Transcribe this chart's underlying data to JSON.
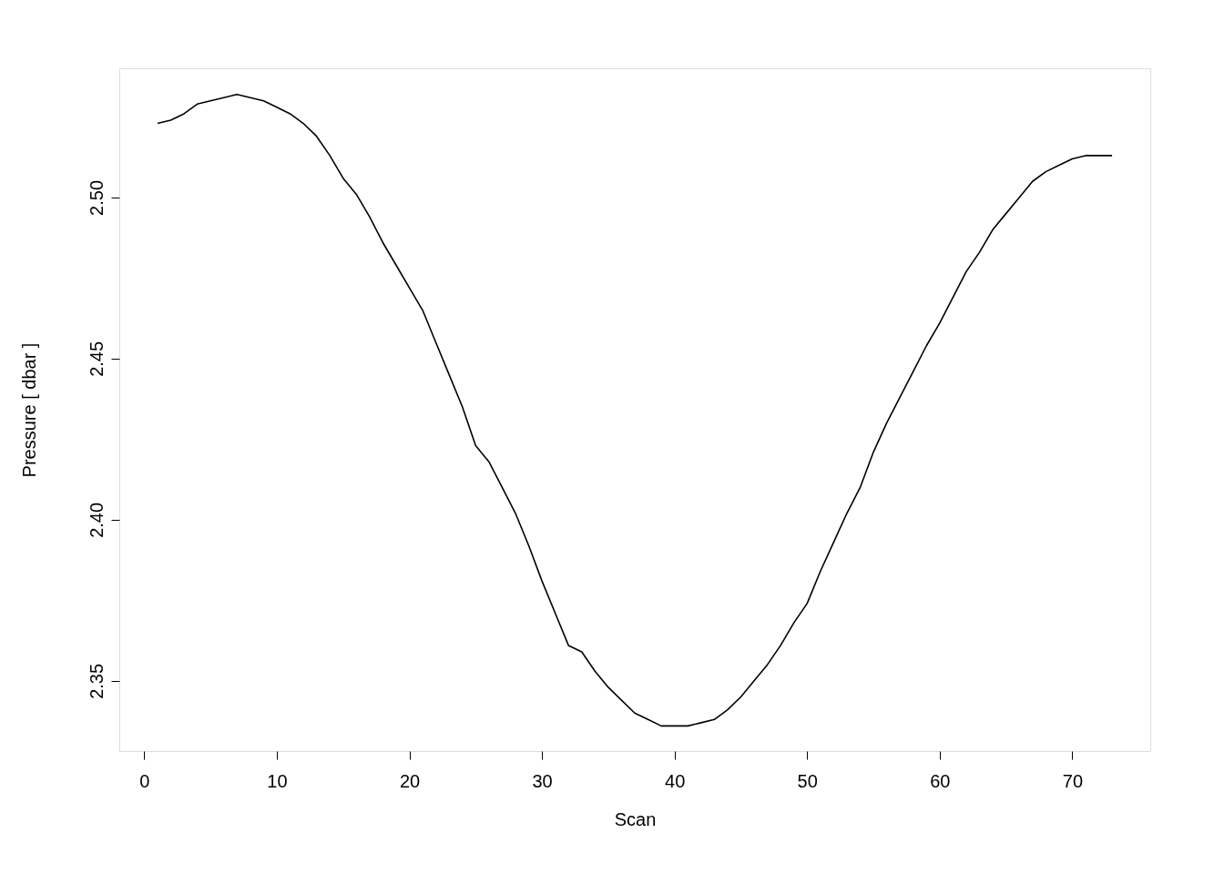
{
  "chart_data": {
    "type": "line",
    "xlabel": "Scan",
    "ylabel": "Pressure [ dbar ]",
    "x": [
      1,
      2,
      3,
      4,
      5,
      6,
      7,
      8,
      9,
      10,
      11,
      12,
      13,
      14,
      15,
      16,
      17,
      18,
      19,
      20,
      21,
      22,
      23,
      24,
      25,
      26,
      27,
      28,
      29,
      30,
      31,
      32,
      33,
      34,
      35,
      36,
      37,
      38,
      39,
      40,
      41,
      42,
      43,
      44,
      45,
      46,
      47,
      48,
      49,
      50,
      51,
      52,
      53,
      54,
      55,
      56,
      57,
      58,
      59,
      60,
      61,
      62,
      63,
      64,
      65,
      66,
      67,
      68,
      69,
      70,
      71,
      72,
      73
    ],
    "series": [
      {
        "color": "#000000",
        "values": [
          2.523,
          2.524,
          2.526,
          2.529,
          2.53,
          2.531,
          2.532,
          2.531,
          2.53,
          2.528,
          2.526,
          2.523,
          2.519,
          2.513,
          2.506,
          2.501,
          2.494,
          2.486,
          2.479,
          2.472,
          2.465,
          2.455,
          2.445,
          2.435,
          2.423,
          2.418,
          2.41,
          2.402,
          2.392,
          2.381,
          2.371,
          2.361,
          2.359,
          2.353,
          2.348,
          2.344,
          2.34,
          2.338,
          2.336,
          2.336,
          2.336,
          2.337,
          2.338,
          2.341,
          2.345,
          2.35,
          2.355,
          2.361,
          2.368,
          2.374,
          2.384,
          2.393,
          2.402,
          2.41,
          2.421,
          2.43,
          2.438,
          2.446,
          2.454,
          2.461,
          2.469,
          2.477,
          2.483,
          2.49,
          2.495,
          2.5,
          2.505,
          2.508,
          2.51,
          2.512,
          2.513,
          2.513,
          2.513
        ]
      }
    ],
    "xlim": [
      -1.88,
      75.88
    ],
    "ylim": [
      2.3282,
      2.5401
    ],
    "xticks": [
      0,
      10,
      20,
      30,
      40,
      50,
      60,
      70
    ],
    "yticks": [
      {
        "value": 2.35,
        "label": "2.35"
      },
      {
        "value": 2.4,
        "label": "2.40"
      },
      {
        "value": 2.45,
        "label": "2.45"
      },
      {
        "value": 2.5,
        "label": "2.50"
      }
    ],
    "grid": false,
    "marker": "none",
    "line_style": "solid"
  }
}
